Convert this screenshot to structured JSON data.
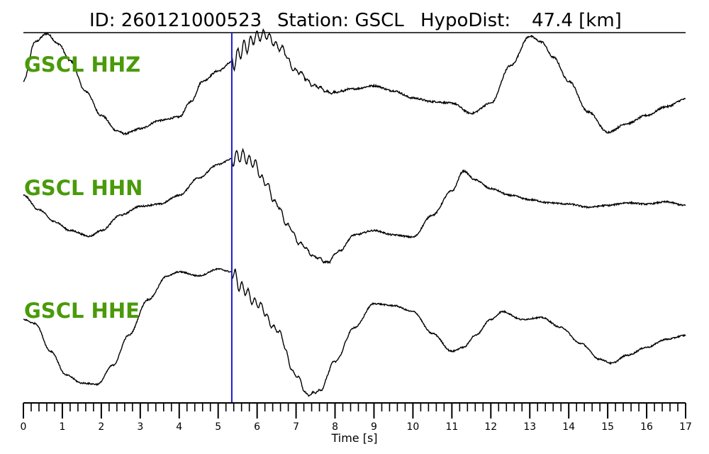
{
  "title": {
    "id_text": "ID: 260121000523",
    "station_text": "Station: GSCL",
    "dist_text": "HypoDist:",
    "dist_value": "47.4 [km]"
  },
  "chart_data": {
    "type": "line",
    "xlabel": "Time [s]",
    "xlim": [
      0,
      17
    ],
    "x_ticks": [
      "0",
      "1",
      "2",
      "3",
      "4",
      "5",
      "6",
      "7",
      "8",
      "9",
      "10",
      "11",
      "12",
      "13",
      "14",
      "15",
      "16",
      "17"
    ],
    "minor_tick_step": 0.2,
    "marker_time": 5.35,
    "label_color": "#4a9a0a",
    "trace_color": "#000000",
    "marker_color": "#1a1ad0",
    "series": [
      {
        "name": "GSCL HHZ",
        "t": [
          0,
          0.3,
          0.6,
          0.9,
          1.2,
          1.6,
          2.0,
          2.4,
          2.6,
          3.0,
          3.5,
          4.0,
          4.3,
          4.6,
          5.0,
          5.35,
          5.7,
          6.0,
          6.2,
          6.6,
          7.0,
          7.5,
          7.9,
          8.5,
          9.0,
          9.5,
          10.0,
          10.5,
          11.0,
          11.5,
          12.0,
          12.5,
          13.0,
          13.3,
          13.6,
          14.0,
          14.5,
          15.0,
          15.5,
          16.0,
          16.5,
          17.0
        ],
        "v": [
          0.05,
          0.82,
          0.98,
          0.78,
          0.45,
          -0.15,
          -0.62,
          -0.92,
          -0.98,
          -0.88,
          -0.72,
          -0.65,
          -0.35,
          0.05,
          0.25,
          0.42,
          0.72,
          0.93,
          0.96,
          0.7,
          0.25,
          -0.05,
          -0.18,
          -0.1,
          -0.04,
          -0.14,
          -0.28,
          -0.35,
          -0.38,
          -0.58,
          -0.38,
          0.35,
          0.93,
          0.82,
          0.52,
          0.05,
          -0.55,
          -0.95,
          -0.78,
          -0.62,
          -0.45,
          -0.3
        ]
      },
      {
        "name": "GSCL HHN",
        "t": [
          0,
          0.4,
          0.8,
          1.2,
          1.7,
          2.0,
          2.5,
          3.0,
          3.5,
          4.0,
          4.5,
          5.0,
          5.35,
          5.6,
          5.9,
          6.2,
          6.5,
          6.8,
          7.1,
          7.5,
          7.8,
          8.1,
          8.5,
          9.0,
          9.5,
          10.0,
          10.5,
          11.0,
          11.3,
          11.6,
          12.0,
          12.5,
          13.0,
          13.5,
          14.0,
          14.5,
          15.0,
          15.5,
          16.0,
          16.5,
          17.0
        ],
        "v": [
          0.35,
          0.02,
          -0.25,
          -0.45,
          -0.58,
          -0.45,
          -0.1,
          0.1,
          0.15,
          0.35,
          0.75,
          1.05,
          1.18,
          1.25,
          1.1,
          0.65,
          0.15,
          -0.35,
          -0.75,
          -1.05,
          -1.18,
          -0.92,
          -0.55,
          -0.45,
          -0.55,
          -0.6,
          -0.1,
          0.45,
          0.9,
          0.7,
          0.5,
          0.35,
          0.25,
          0.18,
          0.15,
          0.08,
          0.12,
          0.18,
          0.15,
          0.2,
          0.12
        ]
      },
      {
        "name": "GSCL HHE",
        "t": [
          0,
          0.3,
          0.7,
          1.1,
          1.5,
          1.9,
          2.3,
          2.7,
          3.2,
          3.7,
          4.0,
          4.5,
          5.0,
          5.35,
          5.6,
          6.0,
          6.5,
          7.0,
          7.3,
          7.6,
          8.0,
          8.5,
          9.0,
          9.5,
          10.0,
          10.5,
          11.0,
          11.3,
          11.6,
          12.0,
          12.3,
          12.8,
          13.3,
          13.8,
          14.3,
          14.8,
          15.1,
          15.5,
          16.0,
          16.5,
          17.0
        ],
        "v": [
          0.35,
          0.25,
          -0.45,
          -1.05,
          -1.25,
          -1.28,
          -0.8,
          -0.05,
          0.85,
          1.45,
          1.55,
          1.45,
          1.62,
          1.55,
          1.15,
          0.75,
          0.1,
          -1.05,
          -1.55,
          -1.45,
          -0.7,
          0.15,
          0.75,
          0.7,
          0.55,
          0.0,
          -0.45,
          -0.35,
          -0.05,
          0.35,
          0.55,
          0.35,
          0.4,
          0.15,
          -0.25,
          -0.65,
          -0.75,
          -0.55,
          -0.35,
          -0.15,
          -0.05
        ]
      }
    ]
  }
}
